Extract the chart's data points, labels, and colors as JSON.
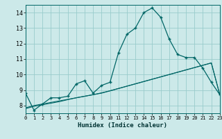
{
  "xlabel": "Humidex (Indice chaleur)",
  "background_color": "#cce9e9",
  "plot_bg_color": "#cce9e9",
  "grid_color": "#99cccc",
  "line_color": "#006666",
  "x_values": [
    0,
    1,
    2,
    3,
    4,
    5,
    6,
    7,
    8,
    9,
    10,
    11,
    12,
    13,
    14,
    15,
    16,
    17,
    18,
    19,
    20,
    21,
    22,
    23
  ],
  "y_main": [
    8.8,
    7.7,
    8.1,
    8.5,
    8.5,
    8.6,
    9.4,
    9.6,
    8.8,
    9.3,
    9.5,
    11.4,
    12.6,
    13.0,
    14.0,
    14.3,
    13.7,
    12.3,
    11.3,
    11.1,
    11.1,
    10.4,
    9.5,
    8.7
  ],
  "y_linear1": [
    7.85,
    8.0,
    8.1,
    8.2,
    8.3,
    8.4,
    8.5,
    8.6,
    8.7,
    8.8,
    8.95,
    9.1,
    9.25,
    9.4,
    9.55,
    9.7,
    9.85,
    10.0,
    10.15,
    10.3,
    10.45,
    10.6,
    10.75,
    8.7
  ],
  "y_linear2": [
    7.8,
    7.95,
    8.05,
    8.15,
    8.25,
    8.38,
    8.5,
    8.6,
    8.7,
    8.82,
    8.95,
    9.1,
    9.25,
    9.4,
    9.55,
    9.7,
    9.85,
    10.0,
    10.15,
    10.3,
    10.45,
    10.6,
    10.75,
    8.7
  ],
  "xlim": [
    0,
    23
  ],
  "ylim": [
    7.5,
    14.5
  ],
  "yticks": [
    8,
    9,
    10,
    11,
    12,
    13,
    14
  ],
  "xticks": [
    0,
    1,
    2,
    3,
    4,
    5,
    6,
    7,
    8,
    9,
    10,
    11,
    12,
    13,
    14,
    15,
    16,
    17,
    18,
    19,
    20,
    21,
    22,
    23
  ]
}
